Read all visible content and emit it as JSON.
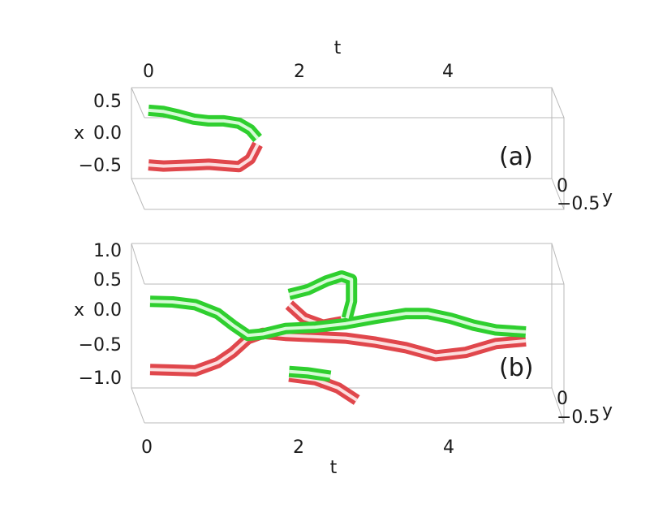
{
  "chart_data": [
    {
      "type": "line",
      "panel_label": "(a)",
      "xlabel": "t",
      "ylabel": "x",
      "zlabel": "y",
      "xticks": [
        "0",
        "2",
        "4"
      ],
      "yticks": [
        "0.5",
        "0.0",
        "−0.5"
      ],
      "zticks": [
        "0",
        "−0.5"
      ],
      "xlim": [
        0,
        5
      ],
      "ylim": [
        -0.7,
        0.6
      ],
      "series": [
        {
          "color": "#2fcf2f",
          "segments": [
            [
              [
                0.0,
                0.38
              ],
              [
                0.2,
                0.36
              ],
              [
                0.4,
                0.3
              ],
              [
                0.6,
                0.23
              ],
              [
                0.8,
                0.2
              ],
              [
                1.0,
                0.2
              ],
              [
                1.2,
                0.16
              ],
              [
                1.35,
                0.05
              ],
              [
                1.45,
                -0.1
              ]
            ]
          ]
        },
        {
          "color": "#e0474c",
          "segments": [
            [
              [
                0.0,
                -0.55
              ],
              [
                0.2,
                -0.57
              ],
              [
                0.4,
                -0.56
              ],
              [
                0.6,
                -0.55
              ],
              [
                0.8,
                -0.54
              ],
              [
                1.0,
                -0.56
              ],
              [
                1.2,
                -0.58
              ],
              [
                1.35,
                -0.45
              ],
              [
                1.45,
                -0.2
              ]
            ]
          ]
        }
      ]
    },
    {
      "type": "line",
      "panel_label": "(b)",
      "xlabel": "t",
      "ylabel": "x",
      "zlabel": "y",
      "xticks": [
        "0",
        "2",
        "4"
      ],
      "yticks": [
        "1.0",
        "0.5",
        "0.0",
        "−0.5",
        "−1.0"
      ],
      "zticks": [
        "0",
        "−0.5"
      ],
      "xlim": [
        0,
        5
      ],
      "ylim": [
        -1.15,
        1.1
      ],
      "series": [
        {
          "color": "#2fcf2f",
          "segments": [
            [
              [
                0.0,
                0.3
              ],
              [
                0.3,
                0.29
              ],
              [
                0.6,
                0.25
              ],
              [
                0.9,
                0.12
              ],
              [
                1.1,
                -0.05
              ],
              [
                1.3,
                -0.2
              ],
              [
                1.5,
                -0.18
              ],
              [
                1.8,
                -0.1
              ],
              [
                2.2,
                -0.08
              ],
              [
                2.6,
                -0.03
              ],
              [
                3.0,
                0.05
              ],
              [
                3.4,
                0.12
              ],
              [
                3.7,
                0.12
              ],
              [
                4.0,
                0.05
              ],
              [
                4.3,
                -0.05
              ],
              [
                4.6,
                -0.12
              ],
              [
                5.0,
                -0.15
              ]
            ],
            [
              [
                1.85,
                0.4
              ],
              [
                2.1,
                0.47
              ],
              [
                2.35,
                0.6
              ],
              [
                2.55,
                0.67
              ],
              [
                2.68,
                0.62
              ],
              [
                2.68,
                0.3
              ],
              [
                2.62,
                0.05
              ]
            ],
            [
              [
                1.85,
                -0.73
              ],
              [
                2.1,
                -0.75
              ],
              [
                2.4,
                -0.8
              ]
            ]
          ]
        },
        {
          "color": "#e0474c",
          "segments": [
            [
              [
                0.0,
                -0.7
              ],
              [
                0.3,
                -0.71
              ],
              [
                0.6,
                -0.72
              ],
              [
                0.9,
                -0.6
              ],
              [
                1.1,
                -0.45
              ],
              [
                1.3,
                -0.25
              ],
              [
                1.5,
                -0.17
              ],
              [
                1.8,
                -0.2
              ],
              [
                2.2,
                -0.22
              ],
              [
                2.6,
                -0.24
              ],
              [
                3.0,
                -0.3
              ],
              [
                3.4,
                -0.38
              ],
              [
                3.8,
                -0.5
              ],
              [
                4.2,
                -0.45
              ],
              [
                4.6,
                -0.32
              ],
              [
                5.0,
                -0.28
              ]
            ],
            [
              [
                1.85,
                0.25
              ],
              [
                2.05,
                0.05
              ],
              [
                2.3,
                -0.05
              ],
              [
                2.55,
                0.0
              ]
            ],
            [
              [
                1.85,
                -0.8
              ],
              [
                2.2,
                -0.85
              ],
              [
                2.5,
                -0.97
              ],
              [
                2.75,
                -1.15
              ]
            ]
          ]
        }
      ]
    }
  ]
}
